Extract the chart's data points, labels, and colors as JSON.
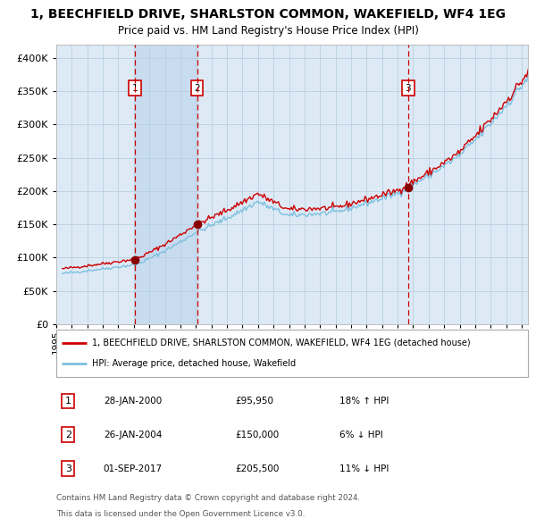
{
  "title": "1, BEECHFIELD DRIVE, SHARLSTON COMMON, WAKEFIELD, WF4 1EG",
  "subtitle": "Price paid vs. HM Land Registry's House Price Index (HPI)",
  "sale_dates": [
    "28-JAN-2000",
    "26-JAN-2004",
    "01-SEP-2017"
  ],
  "sale_prices": [
    95950,
    150000,
    205500
  ],
  "sale_labels": [
    "1",
    "2",
    "3"
  ],
  "sale_hpi_diff": [
    "18% ↑ HPI",
    "6% ↓ HPI",
    "11% ↓ HPI"
  ],
  "legend_property": "1, BEECHFIELD DRIVE, SHARLSTON COMMON, WAKEFIELD, WF4 1EG (detached house)",
  "legend_hpi": "HPI: Average price, detached house, Wakefield",
  "footer_line1": "Contains HM Land Registry data © Crown copyright and database right 2024.",
  "footer_line2": "This data is licensed under the Open Government Licence v3.0.",
  "hpi_color": "#7fbfde",
  "property_color": "#cc0000",
  "sale_marker_color": "#880000",
  "dashed_line_color": "#cc0000",
  "bg_color": "#ddeaf6",
  "grid_color": "#b8cfe0",
  "ylim": [
    0,
    420000
  ],
  "yticks": [
    0,
    50000,
    100000,
    150000,
    200000,
    250000,
    300000,
    350000,
    400000
  ],
  "start_year": 1995.4,
  "end_year": 2025.4,
  "sale_years": [
    2000.07,
    2004.07,
    2017.67
  ],
  "shade_color": "#c8dcf0",
  "table_data": [
    [
      "1",
      "28-JAN-2000",
      "£95,950",
      "18% ↑ HPI"
    ],
    [
      "2",
      "26-JAN-2004",
      "£150,000",
      "6% ↓ HPI"
    ],
    [
      "3",
      "01-SEP-2017",
      "£205,500",
      "11% ↓ HPI"
    ]
  ]
}
